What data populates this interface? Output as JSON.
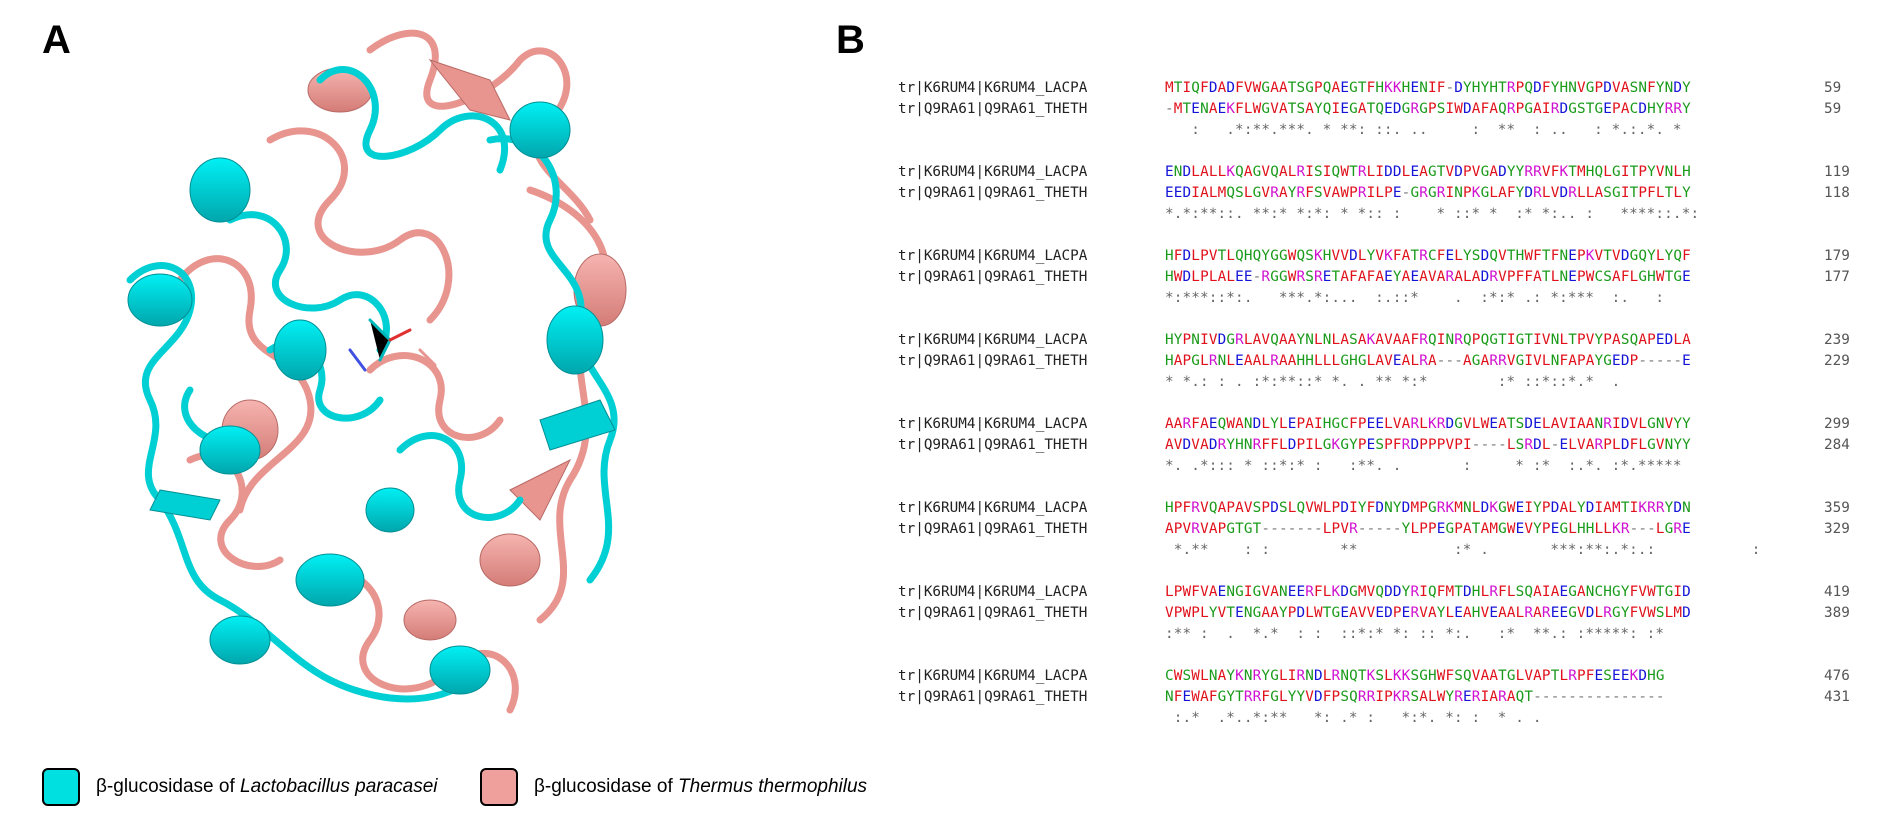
{
  "figure": {
    "panel_a_label": "A",
    "panel_b_label": "B",
    "legend": [
      {
        "prefix": "β-glucosidase of ",
        "organism": "Lactobacillus paracasei",
        "color": "#00e0e0"
      },
      {
        "prefix": "β-glucosidase of ",
        "organism": "Thermus thermophilus",
        "color": "#f0a09c"
      }
    ],
    "colors": {
      "hydrophobic": "#e0111b",
      "acidic": "#1414d8",
      "basic": "#d010d0",
      "polar": "#1a9a1a",
      "cyan_structure": "#00d4d8",
      "salmon_structure": "#e8948f"
    }
  },
  "alignment": {
    "blocks": [
      {
        "seq1_name": "tr|K6RUM4|K6RUM4_LACPA",
        "seq1": "MTIQFDADFVWGAATSGPQAEGTFHKKHENIF-DYHYHTRPQDFYHNVGPDVASNFYNDY",
        "seq1_end": "59",
        "seq2_name": "tr|Q9RA61|Q9RA61_THETH",
        "seq2": "-MTENAEKFLWGVATSAYQIEGATQEDGRGPSIWDAFAQRPGAIRDGSTGEPACDHYRRY",
        "seq2_end": "59",
        "consensus": "   :   .*:**.***. * **: ::. ..     :  **  : ..   : *.:.*. *"
      },
      {
        "seq1_name": "tr|K6RUM4|K6RUM4_LACPA",
        "seq1": "ENDLALLKQAGVQALRISIQWTRLIDDLEAGTVDPVGADYYRRVFKTMHQLGITPYVNLH",
        "seq1_end": "119",
        "seq2_name": "tr|Q9RA61|Q9RA61_THETH",
        "seq2": "EEDIALMQSLGVRAYRFSVAWPRILPE-GRGRINPKGLAFYDRLVDRLLASGITPFLTLY",
        "seq2_end": "118",
        "consensus": "*.*:**::. **:* *:*: * *:: :    * ::* *  :* *:.. :   ****::.*:"
      },
      {
        "seq1_name": "tr|K6RUM4|K6RUM4_LACPA",
        "seq1": "HFDLPVTLQHQYGGWQSKHVVDLYVKFATRCFELYSDQVTHWFTFNEPKVTVDGQYLYQF",
        "seq1_end": "179",
        "seq2_name": "tr|Q9RA61|Q9RA61_THETH",
        "seq2": "HWDLPLALEE-RGGWRSRETAFAFAEYAEAVARALADRVPFFATLNEPWCSAFLGHWTGE",
        "seq2_end": "177",
        "consensus": "*:***::*:.   ***.*:...  :.::*    .  :*:* .: *:***  :.   :"
      },
      {
        "seq1_name": "tr|K6RUM4|K6RUM4_LACPA",
        "seq1": "HYPNIVDGRLAVQAAYNLNLASAKAVAAFRQINRQPQGTIGTIVNLTPVYPASQAPEDLA",
        "seq1_end": "239",
        "seq2_name": "tr|Q9RA61|Q9RA61_THETH",
        "seq2": "HAPGLRNLEAALRAAHHLLLGHGLAVEALRA---AGARRVGIVLNFAPAYGEDP-----E",
        "seq2_end": "229",
        "consensus": "* *.: : . :*:**::* *. . ** *:*        :* ::*::*.*  ."
      },
      {
        "seq1_name": "tr|K6RUM4|K6RUM4_LACPA",
        "seq1": "AARFAEQWANDLYLEPAIHGCFPEELVARLKRDGVLWEATSDELAVIAANRIDVLGNVYY",
        "seq1_end": "299",
        "seq2_name": "tr|Q9RA61|Q9RA61_THETH",
        "seq2": "AVDVADRYHNRFFLDPILGKGYPESPFRDPPPVPI----LSRDL-ELVARPLDFLGVNYY",
        "seq2_end": "284",
        "consensus": "*. .*::: * ::*:* :   :**. .       :     * :*  :.*. :*.*****"
      },
      {
        "seq1_name": "tr|K6RUM4|K6RUM4_LACPA",
        "seq1": "HPFRVQAPAVSPDSLQVWLPDIYFDNYDMPGRKMNLDKGWEIYPDALYDIAMTIKRRYDN",
        "seq1_end": "359",
        "seq2_name": "tr|Q9RA61|Q9RA61_THETH",
        "seq2": "APVRVAPGTGT-------LPVR-----YLPPEGPATAMGWEVYPEGLHHLLKR---LGRE",
        "seq2_end": "329",
        "consensus": " *.**    : :        **           :* .       ***:**:.*:.:           :"
      },
      {
        "seq1_name": "tr|K6RUM4|K6RUM4_LACPA",
        "seq1": "LPWFVAENGIGVANEERFLKDGMVQDDYRIQFMTDHLRFLSQAIAEGANCHGYFVWTGID",
        "seq1_end": "419",
        "seq2_name": "tr|Q9RA61|Q9RA61_THETH",
        "seq2": "VPWPLYVTENGAAYPDLWTGEAVVEDPERVAYLEAHVEAALRAREEGVDLRGYFVWSLMD",
        "seq2_end": "389",
        "consensus": ":** :  .  *.*  : :  ::*:* *: :: *:.   :*  **.: :*****: :*"
      },
      {
        "seq1_name": "tr|K6RUM4|K6RUM4_LACPA",
        "seq1": "CWSWLNAYKNRYGLIRNDLRNQTKSLKKSGHWFSQVAATGLVAPTLRPFESEEKDHG",
        "seq1_end": "476",
        "seq2_name": "tr|Q9RA61|Q9RA61_THETH",
        "seq2": "NFEWAFGYTRRFGLYYVDFPSQRRIPKRSALWYRERIARAQT---------------",
        "seq2_end": "431",
        "consensus": " :.*  .*..*:**   *: .* :   *:*. *: :  * . ."
      }
    ]
  }
}
